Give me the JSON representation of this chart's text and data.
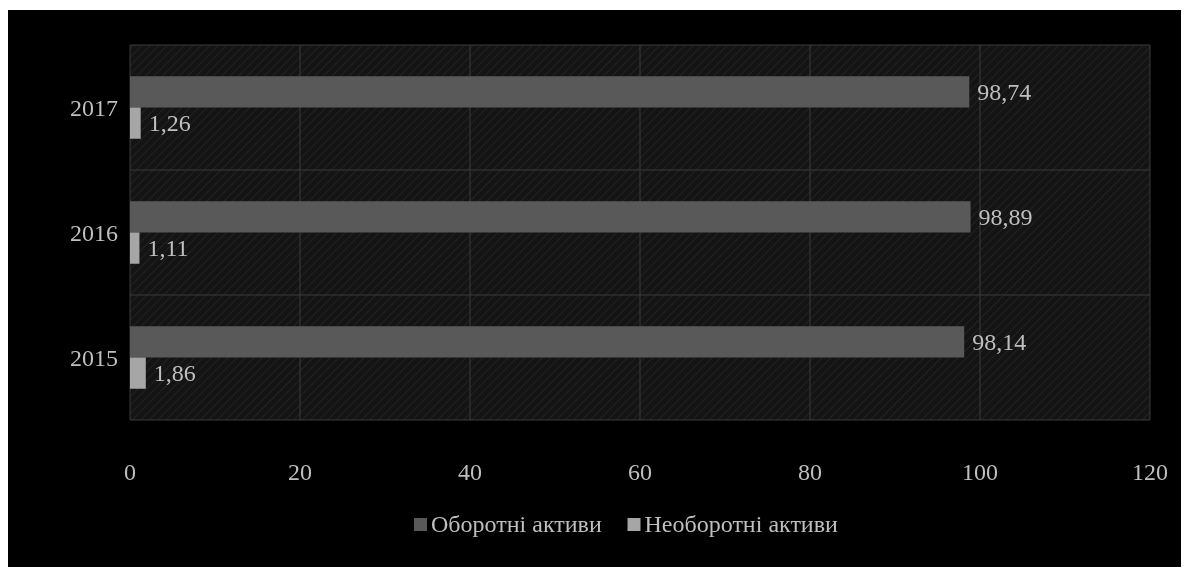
{
  "chart_data": {
    "type": "bar",
    "orientation": "horizontal",
    "categories": [
      "2017",
      "2016",
      "2015"
    ],
    "series": [
      {
        "name": "Оборотні активи",
        "color": "#595959",
        "values": [
          98.74,
          98.89,
          98.14
        ]
      },
      {
        "name": "Необоротні активи",
        "color": "#a6a6a6",
        "values": [
          1.26,
          1.11,
          1.86
        ]
      }
    ],
    "value_labels": [
      [
        "98,74",
        "98,89",
        "98,14"
      ],
      [
        "1,26",
        "1,11",
        "1,86"
      ]
    ],
    "xlim": [
      0,
      120
    ],
    "xticks": [
      0,
      20,
      40,
      60,
      80,
      100,
      120
    ],
    "grid": true,
    "legend": "bottom"
  }
}
